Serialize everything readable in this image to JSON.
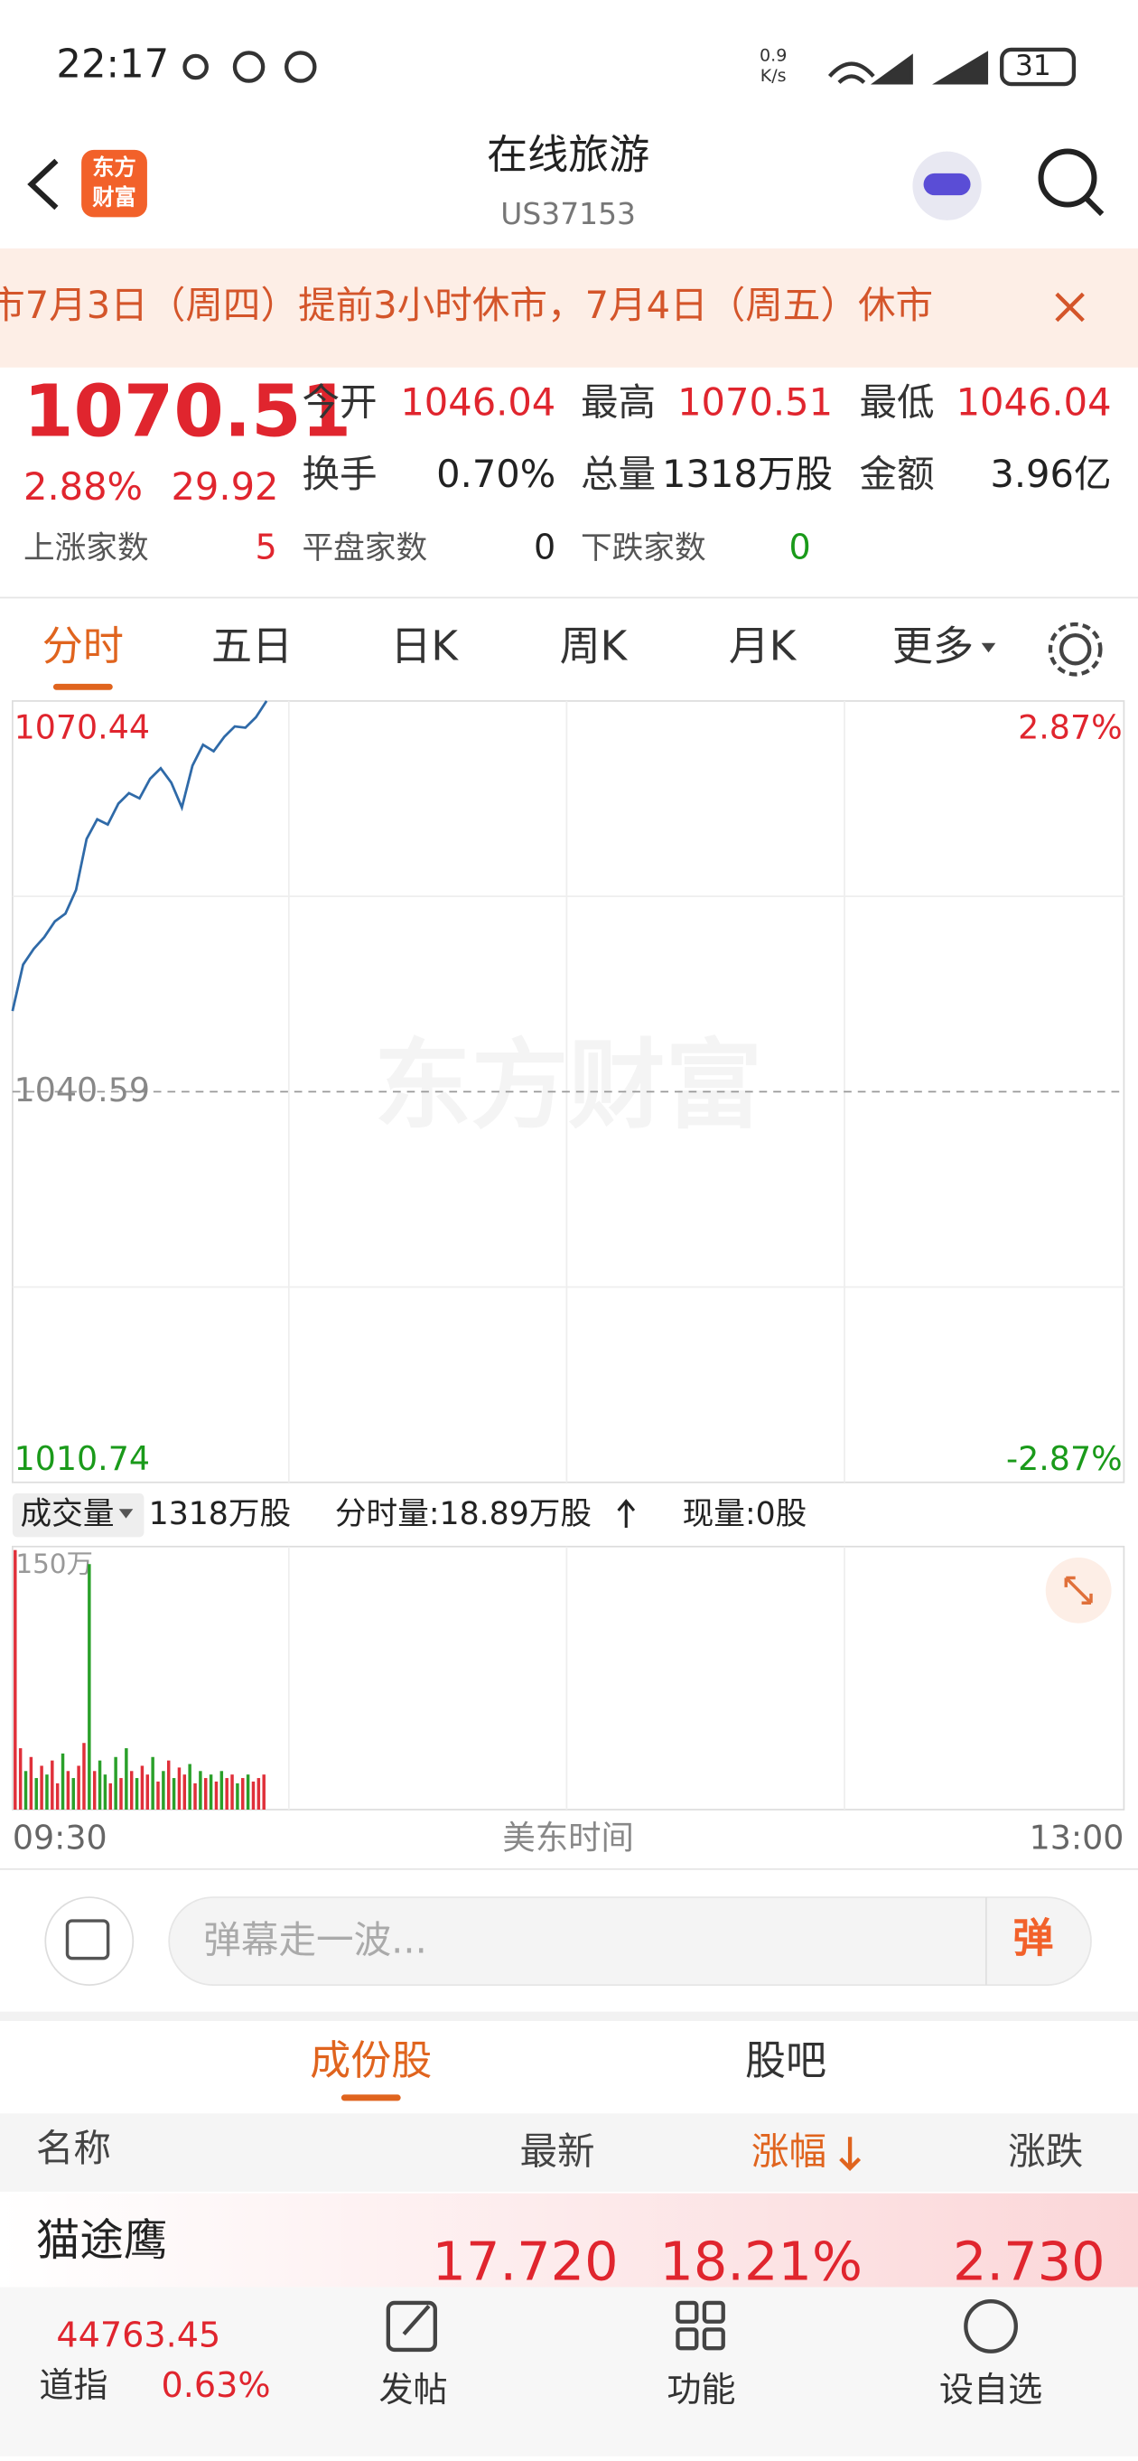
{
  "status_bar": {
    "time": "22:17",
    "speed": "0.9",
    "speed_unit": "K/s",
    "battery": "31"
  },
  "header": {
    "logo": [
      "东方",
      "财富"
    ],
    "title": "在线旅游",
    "code": "US37153"
  },
  "notice": "市7月3日（周四）提前3小时休市，7月4日（周五）休市",
  "quote": {
    "price": "1070.51",
    "change_pct": "2.88%",
    "change": "29.92",
    "stats": [
      [
        {
          "label": "今开",
          "value": "1046.04"
        },
        {
          "label": "最高",
          "value": "1070.51"
        },
        {
          "label": "最低",
          "value": "1046.04"
        }
      ],
      [
        {
          "label": "换手",
          "value": "0.70%"
        },
        {
          "label": "总量",
          "value": "1318万股"
        },
        {
          "label": "金额",
          "value": "3.96亿"
        }
      ]
    ],
    "breadth": [
      {
        "label": "上涨家数",
        "value": "5"
      },
      {
        "label": "平盘家数",
        "value": "0"
      },
      {
        "label": "下跌家数",
        "value": "0"
      }
    ]
  },
  "tabs": [
    "分时",
    "五日",
    "日K",
    "周K",
    "月K",
    "更多"
  ],
  "watermark": "东方财富",
  "volume_bar": {
    "label": "成交量",
    "total": "1318万股",
    "minute": "分时量:18.89万股",
    "current": "现量:0股"
  },
  "chart_data": [
    {
      "type": "line",
      "color": "#2f6aa8",
      "x": [
        "09:30",
        "09:32",
        "09:34",
        "09:36",
        "09:38",
        "09:40",
        "09:42",
        "09:44",
        "09:46",
        "09:48",
        "09:50",
        "09:52",
        "09:54",
        "09:56",
        "09:58",
        "10:00",
        "10:02",
        "10:04",
        "10:06",
        "10:08",
        "10:10",
        "10:12",
        "10:14",
        "10:16",
        "10:18"
      ],
      "values": [
        1046.75,
        1050.3,
        1051.5,
        1052.4,
        1053.6,
        1054.2,
        1056.0,
        1059.9,
        1061.4,
        1061.0,
        1062.6,
        1063.4,
        1063.0,
        1064.5,
        1065.3,
        1064.2,
        1062.3,
        1065.5,
        1067.1,
        1066.6,
        1067.7,
        1068.5,
        1068.4,
        1069.2,
        1070.44
      ],
      "xlim": [
        "09:30",
        "13:00"
      ],
      "ylim": [
        1010.74,
        1070.44
      ],
      "yticks": [
        1010.74,
        1040.59,
        1070.44
      ],
      "y2lim": [
        -2.87,
        2.87
      ],
      "y2ticks": [
        {
          "value": -2.87,
          "label": "-2.87%"
        },
        {
          "value": 2.87,
          "label": "2.87%"
        }
      ],
      "grid": true
    },
    {
      "type": "bar",
      "x": [
        "09:30",
        "09:31",
        "09:32",
        "09:33",
        "09:34",
        "09:35",
        "09:36",
        "09:37",
        "09:38",
        "09:39",
        "09:40",
        "09:41",
        "09:42",
        "09:43",
        "09:44",
        "09:45",
        "09:46",
        "09:47",
        "09:48",
        "09:49",
        "09:50",
        "09:51",
        "09:52",
        "09:53",
        "09:54",
        "09:55",
        "09:56",
        "09:57",
        "09:58",
        "09:59",
        "10:00",
        "10:01",
        "10:02",
        "10:03",
        "10:04",
        "10:05",
        "10:06",
        "10:07",
        "10:08",
        "10:09",
        "10:10",
        "10:11",
        "10:12",
        "10:13",
        "10:14",
        "10:15",
        "10:16",
        "10:17"
      ],
      "values": [
        148,
        35,
        22,
        30,
        18,
        25,
        20,
        28,
        15,
        32,
        22,
        18,
        25,
        38,
        140,
        22,
        28,
        20,
        15,
        30,
        18,
        35,
        22,
        18,
        25,
        20,
        30,
        16,
        22,
        28,
        18,
        24,
        20,
        26,
        15,
        22,
        18,
        20,
        16,
        22,
        18,
        20,
        15,
        18,
        20,
        16,
        18,
        20
      ],
      "colors": [
        "#e0303a",
        "#e0303a",
        "#2aa02a",
        "#e0303a",
        "#2aa02a",
        "#e0303a",
        "#2aa02a",
        "#e0303a",
        "#e0303a",
        "#2aa02a",
        "#e0303a",
        "#2aa02a",
        "#e0303a",
        "#e0303a",
        "#2aa02a",
        "#e0303a",
        "#2aa02a",
        "#2aa02a",
        "#e0303a",
        "#2aa02a",
        "#e0303a",
        "#2aa02a",
        "#e0303a",
        "#2aa02a",
        "#e0303a",
        "#e0303a",
        "#2aa02a",
        "#e0303a",
        "#2aa02a",
        "#e0303a",
        "#2aa02a",
        "#e0303a",
        "#e0303a",
        "#2aa02a",
        "#e0303a",
        "#2aa02a",
        "#e0303a",
        "#2aa02a",
        "#e0303a",
        "#2aa02a",
        "#e0303a",
        "#e0303a",
        "#2aa02a",
        "#e0303a",
        "#2aa02a",
        "#e0303a",
        "#e0303a",
        "#e0303a"
      ],
      "xlim": [
        "09:30",
        "13:00"
      ],
      "xticks": [
        "09:30",
        "13:00"
      ],
      "x_label": "美东时间",
      "ylim": [
        0,
        150
      ],
      "yticks": [
        {
          "value": 150,
          "label": "150万"
        }
      ]
    }
  ],
  "danmaku": {
    "placeholder": "弹幕走一波...",
    "button": "弹"
  },
  "sub_tabs": [
    "成份股",
    "股吧"
  ],
  "table": {
    "header": [
      "名称",
      "最新",
      "涨幅",
      "涨跌"
    ],
    "rows": [
      [
        "猫途鹰",
        "17.720",
        "18.21%",
        "2.730"
      ]
    ]
  },
  "bottom_bar": {
    "index_value": "44763.45",
    "index_name": "道指",
    "index_change": "0.63%",
    "nav": [
      "发帖",
      "功能",
      "设自选"
    ]
  }
}
